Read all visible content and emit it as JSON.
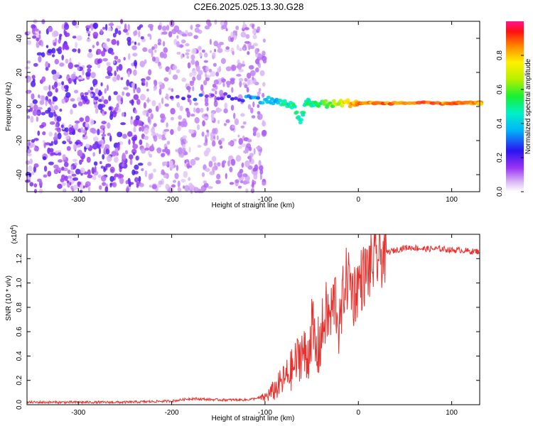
{
  "title": "C2E6.2025.025.13.30.G28",
  "colors": {
    "snr_line": "#e8302c",
    "axis": "#000000",
    "background": "#ffffff"
  },
  "chart_data": [
    {
      "type": "heatmap",
      "xlabel": "Height of straight line (km)",
      "ylabel": "Frequency (Hz)",
      "xlim": [
        -355,
        130
      ],
      "ylim": [
        -50,
        50
      ],
      "xticks": [
        -300,
        -200,
        -100,
        0,
        100
      ],
      "yticks": [
        -40,
        -20,
        0,
        20,
        40
      ],
      "grid": false,
      "colorbar": {
        "label": "Normalized spectral amplitude",
        "range": [
          0,
          1
        ],
        "ticks": [
          "0.0",
          "0.2",
          "0.4",
          "0.6",
          "0.8"
        ],
        "colormap": "rainbow"
      },
      "signal_track": {
        "x": [
          -200,
          -150,
          -120,
          -100,
          -90,
          -80,
          -70,
          -62,
          -55,
          -50,
          -40,
          -30,
          -20,
          -10,
          0,
          20,
          50,
          90,
          110,
          130
        ],
        "center_hz": [
          5,
          6,
          5,
          4,
          3,
          2,
          0,
          -8,
          3,
          1,
          2,
          1,
          2,
          2,
          2,
          2,
          2,
          2,
          2,
          2
        ],
        "amplitude": [
          0.25,
          0.2,
          0.3,
          0.35,
          0.4,
          0.45,
          0.5,
          0.45,
          0.5,
          0.5,
          0.55,
          0.6,
          0.7,
          0.8,
          0.85,
          0.85,
          0.85,
          0.85,
          0.85,
          0.85
        ]
      }
    },
    {
      "type": "line",
      "xlabel": "Height of straight line (km)",
      "ylabel": "SNR (10 * v/v)",
      "scale_label": "(x10",
      "scale_exp": "4",
      "scale_close": ")",
      "xlim": [
        -355,
        130
      ],
      "ylim": [
        0,
        1.4
      ],
      "xticks": [
        -300,
        -200,
        -100,
        0,
        100
      ],
      "yticks": [
        "0.0",
        "0.2",
        "0.4",
        "0.6",
        "0.8",
        "1.0",
        "1.2"
      ],
      "grid": false,
      "series": [
        {
          "x": [
            -355,
            -300,
            -250,
            -200,
            -180,
            -150,
            -120,
            -100,
            -90,
            -80,
            -70,
            -60,
            -55,
            -50,
            -45,
            -40,
            -35,
            -30,
            -25,
            -20,
            -15,
            -10,
            -5,
            0,
            5,
            10,
            15,
            20,
            30,
            40,
            50,
            60,
            70,
            80,
            90,
            100,
            110,
            120,
            130
          ],
          "values": [
            0.02,
            0.02,
            0.02,
            0.03,
            0.05,
            0.04,
            0.04,
            0.06,
            0.12,
            0.2,
            0.3,
            0.45,
            0.35,
            0.65,
            0.4,
            0.55,
            0.75,
            0.7,
            0.9,
            0.6,
            1.0,
            1.05,
            0.9,
            1.0,
            1.05,
            1.1,
            1.15,
            1.2,
            1.25,
            1.27,
            1.29,
            1.29,
            1.28,
            1.28,
            1.28,
            1.27,
            1.27,
            1.26,
            1.26
          ]
        }
      ]
    }
  ]
}
